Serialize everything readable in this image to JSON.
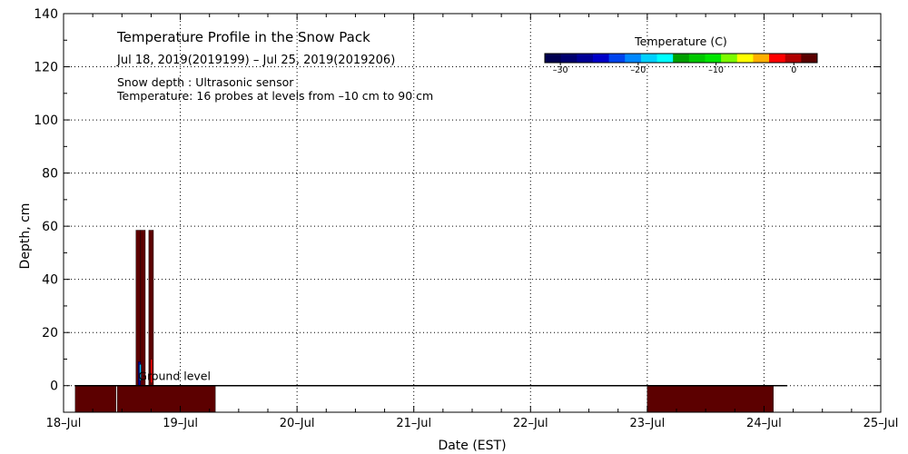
{
  "chart_data": {
    "type": "heatmap",
    "title": "Temperature Profile in the Snow Pack",
    "subtitle": "Jul 18, 2019(2019199) – Jul 25, 2019(2019206)",
    "notes": [
      "Snow depth : Ultrasonic sensor",
      "Temperature: 16 probes at levels from –10 cm to 90 cm"
    ],
    "xlabel": "Date (EST)",
    "ylabel": "Depth, cm",
    "x_ticks": [
      "18–Jul",
      "19–Jul",
      "20–Jul",
      "21–Jul",
      "22–Jul",
      "23–Jul",
      "24–Jul",
      "25–Jul"
    ],
    "y_ticks": [
      "0",
      "20",
      "40",
      "60",
      "80",
      "100",
      "120",
      "140"
    ],
    "xlim_days": [
      0,
      7
    ],
    "ylim": [
      -10,
      140
    ],
    "grid": true,
    "ground_label": "Ground level",
    "colorbar": {
      "label": "Temperature (C)",
      "tick_labels": [
        "–30",
        "–20",
        "–10",
        "0"
      ],
      "tick_values": [
        -30,
        -20,
        -10,
        0
      ],
      "range": [
        -32,
        3
      ],
      "colors": [
        "#000050",
        "#00006e",
        "#000096",
        "#0000c8",
        "#0044ee",
        "#0088ff",
        "#00d0ff",
        "#00ffff",
        "#00a000",
        "#00c800",
        "#00e600",
        "#7cfc00",
        "#ffff00",
        "#ffb000",
        "#ff0000",
        "#b00000",
        "#5a0000"
      ]
    },
    "cells": [
      {
        "x0": 0.1,
        "x1": 0.45,
        "y0": -10,
        "y1": 0,
        "color": "#5c0000"
      },
      {
        "x0": 0.46,
        "x1": 1.3,
        "y0": -10,
        "y1": 0,
        "color": "#5c0000"
      },
      {
        "x0": 5.0,
        "x1": 6.08,
        "y0": -10,
        "y1": 0,
        "color": "#5c0000"
      },
      {
        "x0": 0.62,
        "x1": 0.66,
        "y0": 0,
        "y1": 58.5,
        "color": "#5c0000"
      },
      {
        "x0": 0.66,
        "x1": 0.7,
        "y0": 0,
        "y1": 58.5,
        "color": "#5c0000"
      },
      {
        "x0": 0.73,
        "x1": 0.77,
        "y0": 0,
        "y1": 58.5,
        "color": "#5c0000"
      },
      {
        "x0": 0.64,
        "x1": 0.66,
        "y0": 0,
        "y1": 9,
        "color": "#0000a0"
      },
      {
        "x0": 0.65,
        "x1": 0.665,
        "y0": 2,
        "y1": 8,
        "color": "#00c0ff"
      },
      {
        "x0": 0.745,
        "x1": 0.76,
        "y0": 1,
        "y1": 10,
        "color": "#ff0000"
      }
    ],
    "ground_line_x": [
      0.1,
      6.2
    ]
  }
}
